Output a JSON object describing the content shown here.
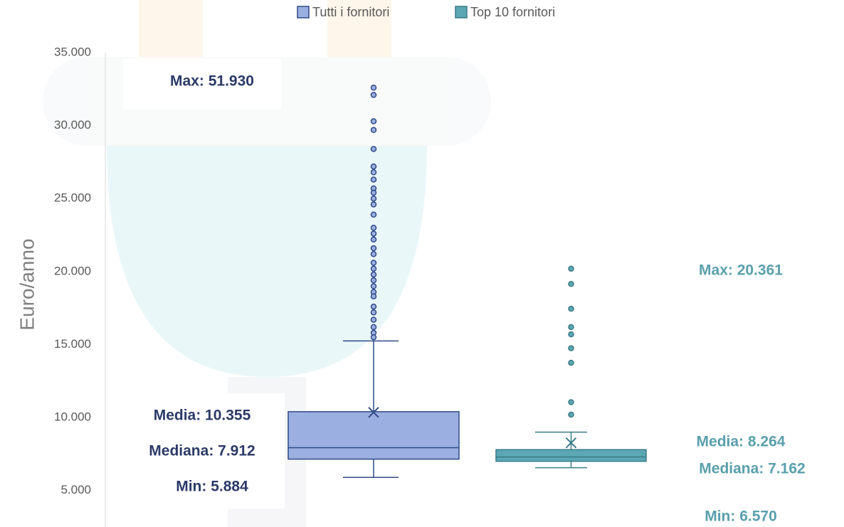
{
  "chart_data": {
    "type": "box",
    "y_label": "Euro/anno",
    "ylim": [
      2500,
      35000
    ],
    "yticks": [
      {
        "value": 5000,
        "label": "5.000"
      },
      {
        "value": 10000,
        "label": "10.000"
      },
      {
        "value": 15000,
        "label": "15.000"
      },
      {
        "value": 20000,
        "label": "20.000"
      },
      {
        "value": 25000,
        "label": "25.000"
      },
      {
        "value": 30000,
        "label": "30.000"
      },
      {
        "value": 35000,
        "label": "35.000"
      }
    ],
    "grid": false,
    "legend": "top",
    "series": [
      {
        "name": "Tutti i fornitori",
        "color": "#9bb0e0",
        "stroke": "#2e4a87",
        "q1": 7150,
        "median": 7930,
        "q3": 10400,
        "whisker_low": 5900,
        "whisker_high": 15250,
        "mean": 10355,
        "outliers": [
          32600,
          32100,
          30300,
          29700,
          28400,
          27200,
          26800,
          26300,
          25700,
          25400,
          25000,
          24600,
          23900,
          23000,
          22600,
          22200,
          21600,
          21200,
          20600,
          20200,
          19800,
          19400,
          19000,
          18600,
          18300,
          17600,
          17200,
          16700,
          16200,
          15800,
          15500
        ],
        "annotations": [
          "Max: 51.930",
          "Media: 10.355",
          "Mediana: 7.912",
          "Min: 5.884"
        ],
        "annotation_color": "#2b3a67"
      },
      {
        "name": "Top 10 fornitori",
        "color": "#5ba7b3",
        "stroke": "#3b7c88",
        "q1": 7000,
        "median": 7300,
        "q3": 7800,
        "whisker_low": 6560,
        "whisker_high": 9000,
        "mean": 8264,
        "outliers": [
          20200,
          19150,
          17450,
          16200,
          15700,
          14750,
          13750,
          11050,
          10200
        ],
        "annotations": [
          "Max: 20.361",
          "Media: 8.264",
          "Mediana: 7.162",
          "Min: 6.570"
        ],
        "annotation_color": "#5a9fad"
      }
    ]
  }
}
